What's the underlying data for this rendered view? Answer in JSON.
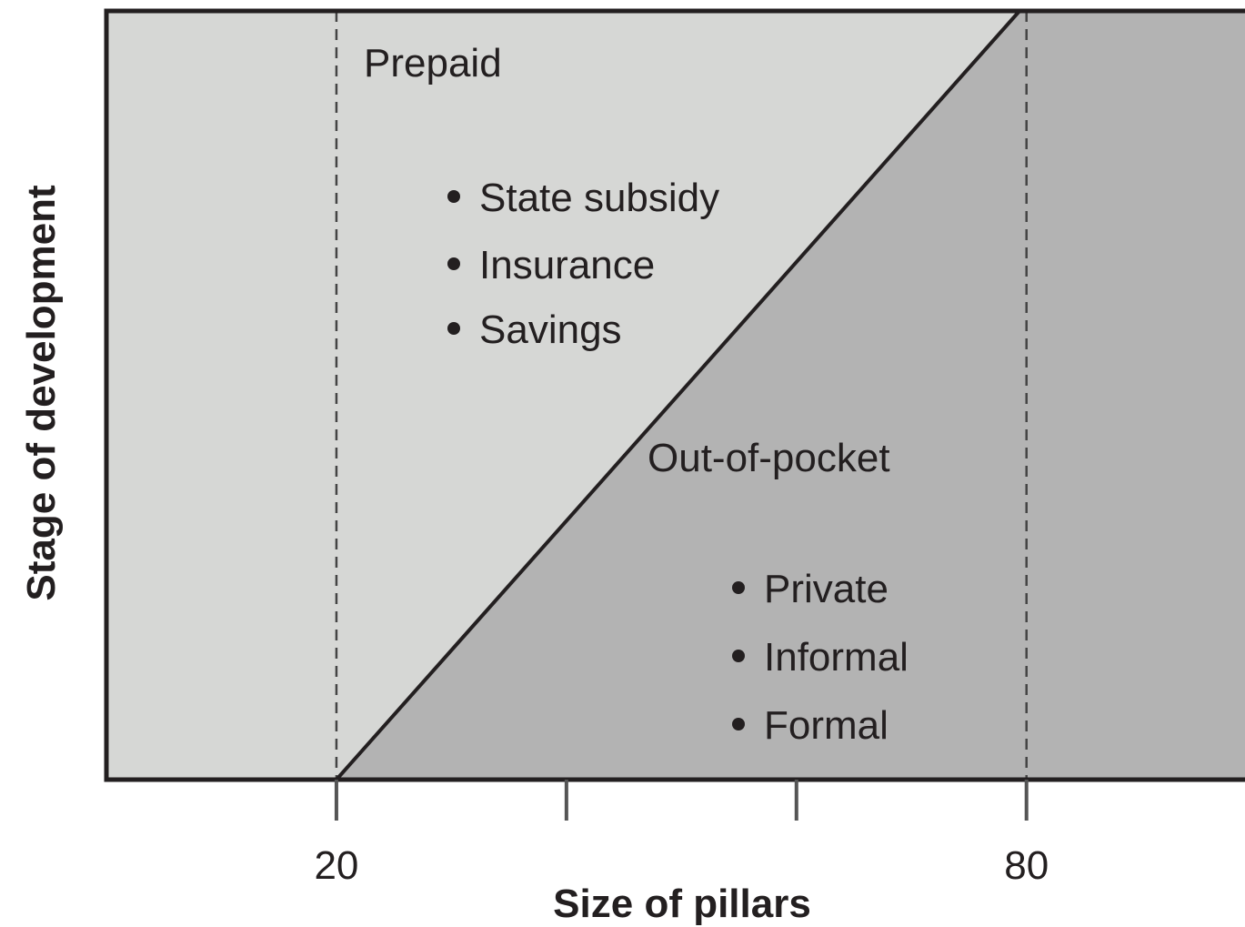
{
  "chart_data": {
    "type": "region",
    "xlabel": "Size of pillars",
    "ylabel": "Stage of development",
    "xlim": [
      0,
      99
    ],
    "ylim": [
      0,
      100
    ],
    "xticks": [
      20,
      80
    ],
    "minor_xticks": [
      40,
      60
    ],
    "vlines": [
      20,
      80
    ],
    "boundary": {
      "x": [
        20,
        79.4
      ],
      "y": [
        0,
        100
      ]
    },
    "regions": [
      {
        "label": "Prepaid",
        "items": [
          "State subsidy",
          "Insurance",
          "Savings"
        ],
        "color": "#d6d7d5"
      },
      {
        "label": "Out-of-pocket",
        "items": [
          "Private",
          "Informal",
          "Formal"
        ],
        "color": "#b3b3b3"
      }
    ]
  }
}
